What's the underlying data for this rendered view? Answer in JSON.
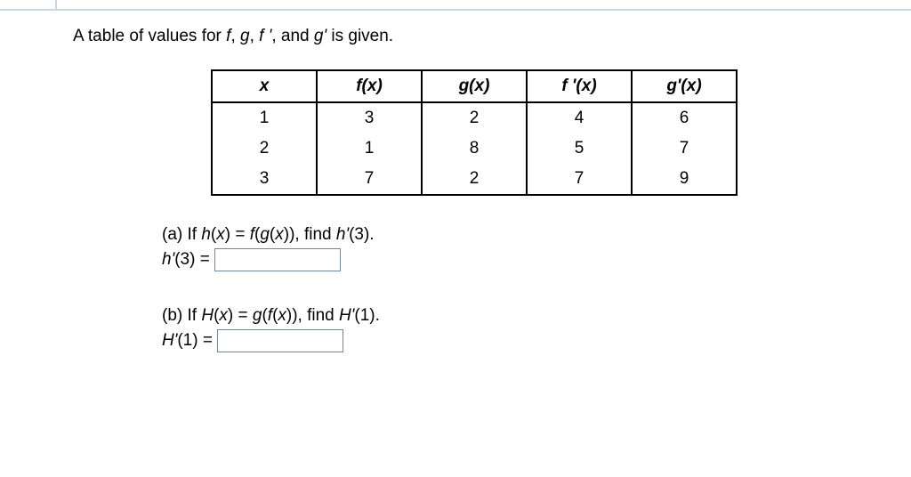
{
  "intro": {
    "pre": "A table of values for ",
    "f": "f",
    "sep1": ", ",
    "g": "g",
    "sep2": ", ",
    "fprime": "f '",
    "sep3": ", and ",
    "gprime": "g'",
    "post": " is given."
  },
  "table": {
    "headers": {
      "x": "x",
      "fx": "f(x)",
      "gx": "g(x)",
      "fpx": "f '(x)",
      "gpx": "g'(x)"
    },
    "rows": [
      {
        "x": "1",
        "fx": "3",
        "gx": "2",
        "fpx": "4",
        "gpx": "6"
      },
      {
        "x": "2",
        "fx": "1",
        "gx": "8",
        "fpx": "5",
        "gpx": "7"
      },
      {
        "x": "3",
        "fx": "7",
        "gx": "2",
        "fpx": "7",
        "gpx": "9"
      }
    ]
  },
  "partA": {
    "label": "(a) If ",
    "hx": "h",
    "openparen": "(",
    "xvar": "x",
    "closeparen": ")",
    "eq": " = ",
    "f": "f",
    "g": "g",
    "q_tail": ")), find ",
    "target": "h'",
    "target_arg": "(3).",
    "answer_lhs": "h'",
    "answer_arg": "(3) = "
  },
  "partB": {
    "label": "(b) If  ",
    "Hx": "H",
    "openparen": "(",
    "xvar": "x",
    "closeparen": ")",
    "eq": " = ",
    "g": "g",
    "f": "f",
    "q_tail": ")), find ",
    "target": "H'",
    "target_arg": "(1).",
    "answer_lhs": "H'",
    "answer_arg": "(1) = "
  }
}
